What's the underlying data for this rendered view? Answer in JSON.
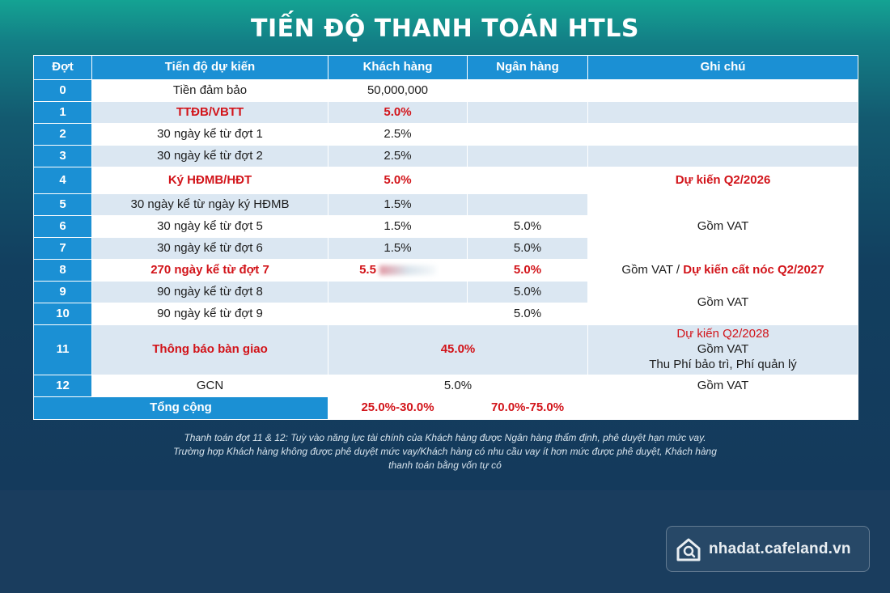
{
  "title": "TIẾN ĐỘ THANH TOÁN HTLS",
  "headers": {
    "dot": "Đợt",
    "tien_do": "Tiến độ dự kiến",
    "khach_hang": "Khách hàng",
    "ngan_hang": "Ngân hàng",
    "ghi_chu": "Ghi chú"
  },
  "rows": [
    {
      "dot": "0",
      "tien_do": "Tiền đảm bảo",
      "khach_hang": "50,000,000",
      "ngan_hang": "",
      "ghi_chu": ""
    },
    {
      "dot": "1",
      "tien_do": "TTĐB/VBTT",
      "khach_hang": "5.0%",
      "ngan_hang": "",
      "ghi_chu": ""
    },
    {
      "dot": "2",
      "tien_do": "30 ngày kể từ đợt 1",
      "khach_hang": "2.5%",
      "ngan_hang": "",
      "ghi_chu": ""
    },
    {
      "dot": "3",
      "tien_do": "30 ngày kể từ đợt 2",
      "khach_hang": "2.5%",
      "ngan_hang": "",
      "ghi_chu": ""
    },
    {
      "dot": "4",
      "tien_do": "Ký HĐMB/HĐT",
      "khach_hang": "5.0%",
      "ngan_hang": "",
      "ghi_chu": "Dự kiến Q2/2026"
    },
    {
      "dot": "5",
      "tien_do": "30 ngày kể từ ngày ký HĐMB",
      "khach_hang": "1.5%",
      "ngan_hang": ""
    },
    {
      "dot": "6",
      "tien_do": "30 ngày kể từ đợt 5",
      "khach_hang": "1.5%",
      "ngan_hang": "5.0%"
    },
    {
      "dot": "7",
      "tien_do": "30 ngày kể từ đợt 6",
      "khach_hang": "1.5%",
      "ngan_hang": "5.0%"
    },
    {
      "dot": "8",
      "tien_do": "270 ngày kể từ đợt 7",
      "khach_hang": "5.5",
      "ngan_hang": "5.0%",
      "ghi_chu_a": "Gồm VAT /",
      "ghi_chu_b": "Dự kiến cất nóc Q2/2027"
    },
    {
      "dot": "9",
      "tien_do": "90 ngày kể từ đợt 8",
      "khach_hang": "",
      "ngan_hang": "5.0%"
    },
    {
      "dot": "10",
      "tien_do": "90 ngày kể từ đợt 9",
      "khach_hang": "",
      "ngan_hang": "5.0%"
    },
    {
      "dot": "11",
      "tien_do": "Thông báo bàn giao",
      "merged": "45.0%",
      "ghi_chu_1": "Dự kiến Q2/2028",
      "ghi_chu_2": "Gồm VAT",
      "ghi_chu_3": "Thu Phí bảo trì, Phí quản lý"
    },
    {
      "dot": "12",
      "tien_do": "GCN",
      "merged": "5.0%",
      "ghi_chu": "Gồm VAT"
    }
  ],
  "merged_notes": {
    "rows_5_7": "Gồm VAT",
    "rows_9_10": "Gồm VAT"
  },
  "total": {
    "label": "Tổng cộng",
    "khach_hang": "25.0%-30.0%",
    "ngan_hang": "70.0%-75.0%"
  },
  "footnote": [
    "Thanh toán đợt 11 & 12: Tuỳ vào năng lực tài chính của Khách hàng được Ngân hàng thẩm định, phê duyệt hạn mức vay.",
    "Trường hợp Khách hàng không được phê duyệt mức vay/Khách hàng có nhu cầu vay ít hơn mức được phê duyệt, Khách hàng",
    "thanh toán bằng vốn tự có"
  ],
  "watermark": {
    "text": "nhadat.cafeland.vn",
    "icon": "house-search-icon"
  },
  "colors": {
    "header_blue": "#1b90d4",
    "highlight_red": "#d2141a",
    "row_tint": "#dbe7f2"
  }
}
